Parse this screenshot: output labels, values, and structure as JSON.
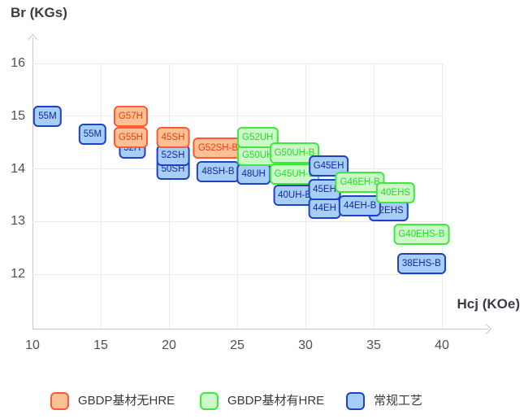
{
  "axes": {
    "y_title": "Br (KGs)",
    "x_title": "Hcj (KOe)"
  },
  "legend": {
    "items": [
      {
        "label": "GBDP基材无HRE",
        "series": "gbdp_no_hre"
      },
      {
        "label": "GBDP基材有HRE",
        "series": "gbdp_hre"
      },
      {
        "label": "常规工艺",
        "series": "conventional"
      }
    ]
  },
  "colors": {
    "gbdp_no_hre": {
      "fill": "#fbc093",
      "border": "#fd5a36",
      "text": "#f53b10"
    },
    "gbdp_hre": {
      "fill": "#cdf8c8",
      "border": "#3ce93c",
      "text": "#25dc28"
    },
    "conventional": {
      "fill": "#a6cef7",
      "border": "#1d42c8",
      "text": "#13299c"
    },
    "grid": "#ececec",
    "axis": "#c9c9c9",
    "tick_text": "#4f4f4f",
    "axis_title_text": "#3b3b46",
    "legend_text": "#3a3a3a"
  },
  "chart_data": {
    "type": "scatter",
    "title": "",
    "xlabel": "Hcj (KOe)",
    "ylabel": "Br (KGs)",
    "x_ticks": [
      10,
      15,
      20,
      25,
      30,
      35,
      40
    ],
    "y_ticks": [
      12,
      13,
      14,
      15,
      16
    ],
    "xlim": [
      10,
      41.7
    ],
    "ylim": [
      11.6,
      16.5
    ],
    "grid": true,
    "legend_position": "bottom",
    "series_meta": [
      {
        "key": "gbdp_no_hre",
        "name": "GBDP基材无HRE"
      },
      {
        "key": "gbdp_hre",
        "name": "GBDP基材有HRE"
      },
      {
        "key": "conventional",
        "name": "常规工艺"
      }
    ],
    "points": [
      {
        "label": "55M",
        "series": "conventional",
        "x": 11.1,
        "y": 15.0
      },
      {
        "label": "55M",
        "series": "conventional",
        "x": 14.4,
        "y": 14.65
      },
      {
        "label": "52H",
        "series": "conventional",
        "x": 17.3,
        "y": 14.4
      },
      {
        "label": "G55H",
        "series": "gbdp_no_hre",
        "x": 17.2,
        "y": 14.6
      },
      {
        "label": "G57H",
        "series": "gbdp_no_hre",
        "x": 17.2,
        "y": 15.0
      },
      {
        "label": "50SH",
        "series": "conventional",
        "x": 20.3,
        "y": 14.0
      },
      {
        "label": "52SH",
        "series": "conventional",
        "x": 20.3,
        "y": 14.25
      },
      {
        "label": "45SH",
        "series": "gbdp_no_hre",
        "x": 20.3,
        "y": 14.6
      },
      {
        "label": "48SH-B",
        "series": "conventional",
        "x": 23.6,
        "y": 13.95
      },
      {
        "label": "G52SH-B",
        "series": "gbdp_no_hre",
        "x": 23.6,
        "y": 14.4
      },
      {
        "label": "48UH",
        "series": "conventional",
        "x": 26.2,
        "y": 13.9
      },
      {
        "label": "G50UH",
        "series": "gbdp_hre",
        "x": 26.5,
        "y": 14.25
      },
      {
        "label": "G52UH",
        "series": "gbdp_hre",
        "x": 26.5,
        "y": 14.6
      },
      {
        "label": "G50UH-B",
        "series": "gbdp_hre",
        "x": 29.2,
        "y": 14.3
      },
      {
        "label": "G45UH-B",
        "series": "gbdp_hre",
        "x": 29.2,
        "y": 13.9
      },
      {
        "label": "40UH-B",
        "series": "conventional",
        "x": 29.2,
        "y": 13.5
      },
      {
        "label": "44EH",
        "series": "conventional",
        "x": 31.4,
        "y": 13.25
      },
      {
        "label": "45EH",
        "series": "conventional",
        "x": 31.4,
        "y": 13.6
      },
      {
        "label": "G45EH",
        "series": "conventional",
        "x": 31.7,
        "y": 14.05
      },
      {
        "label": "42EHS",
        "series": "conventional",
        "x": 36.1,
        "y": 13.2
      },
      {
        "label": "44EH-B",
        "series": "conventional",
        "x": 34.0,
        "y": 13.3
      },
      {
        "label": "G46EH-B",
        "series": "gbdp_hre",
        "x": 34.0,
        "y": 13.75
      },
      {
        "label": "40EHS",
        "series": "gbdp_hre",
        "x": 36.6,
        "y": 13.55
      },
      {
        "label": "G40EHS-B",
        "series": "gbdp_hre",
        "x": 38.5,
        "y": 12.75
      },
      {
        "label": "38EHS-B",
        "series": "conventional",
        "x": 38.5,
        "y": 12.2
      }
    ]
  }
}
